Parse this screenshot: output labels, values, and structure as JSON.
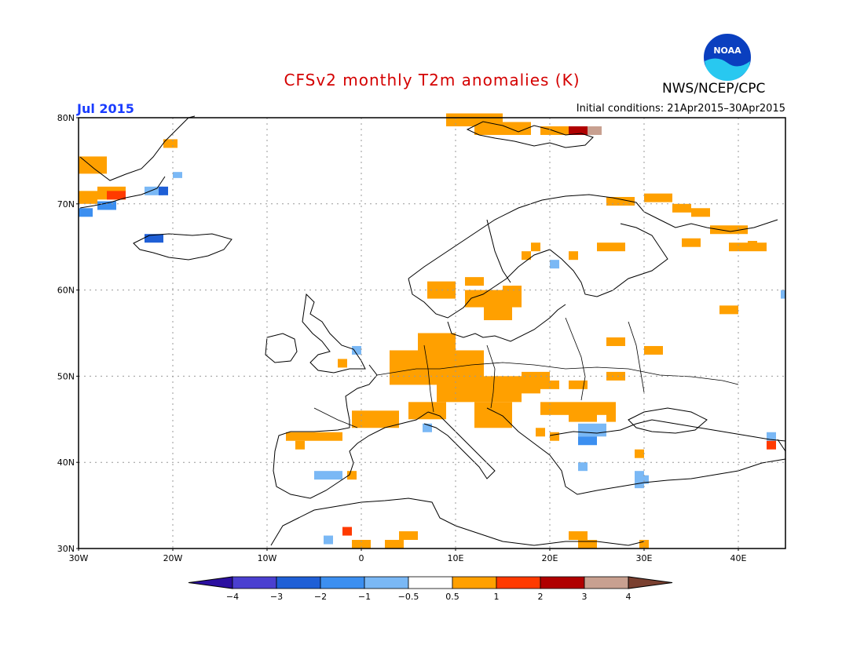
{
  "title": "CFSv2 monthly T2m anomalies (K)",
  "agency": "NWS/NCEP/CPC",
  "logo_text": "NOAA",
  "valid_month": "Jul 2015",
  "initial_conditions": "Initial conditions: 21Apr2015–30Apr2015",
  "map": {
    "lon_range": [
      -30,
      45
    ],
    "lat_range": [
      30,
      80
    ],
    "lat_ticks": [
      {
        "value": 80,
        "label": "80N"
      },
      {
        "value": 70,
        "label": "70N"
      },
      {
        "value": 60,
        "label": "60N"
      },
      {
        "value": 50,
        "label": "50N"
      },
      {
        "value": 40,
        "label": "40N"
      },
      {
        "value": 30,
        "label": "30N"
      }
    ],
    "lon_ticks": [
      {
        "value": -30,
        "label": "30W"
      },
      {
        "value": -20,
        "label": "20W"
      },
      {
        "value": -10,
        "label": "10W"
      },
      {
        "value": 0,
        "label": "0"
      },
      {
        "value": 10,
        "label": "10E"
      },
      {
        "value": 20,
        "label": "20E"
      },
      {
        "value": 30,
        "label": "30E"
      },
      {
        "value": 40,
        "label": "40E"
      }
    ],
    "grid": true
  },
  "colorbar": {
    "labels": [
      "−4",
      "−3",
      "−2",
      "−1",
      "−0.5",
      "0.5",
      "1",
      "2",
      "3",
      "4"
    ],
    "colors": [
      "#2b0fa0",
      "#4a3fd0",
      "#1f5fd6",
      "#3c8ff0",
      "#7ab8f5",
      "#ffffff",
      "#ffa000",
      "#ff3a00",
      "#b00000",
      "#c8a090",
      "#7a4030"
    ]
  },
  "anomaly_colors": {
    "warm_05_1": "#ffa000",
    "warm_1_2": "#ff3a00",
    "warm_2_3": "#b00000",
    "warm_3_4": "#c8a090",
    "cold_05_1": "#7ab8f5",
    "cold_1_2": "#3c8ff0",
    "cold_2_3": "#1f5fd6"
  }
}
